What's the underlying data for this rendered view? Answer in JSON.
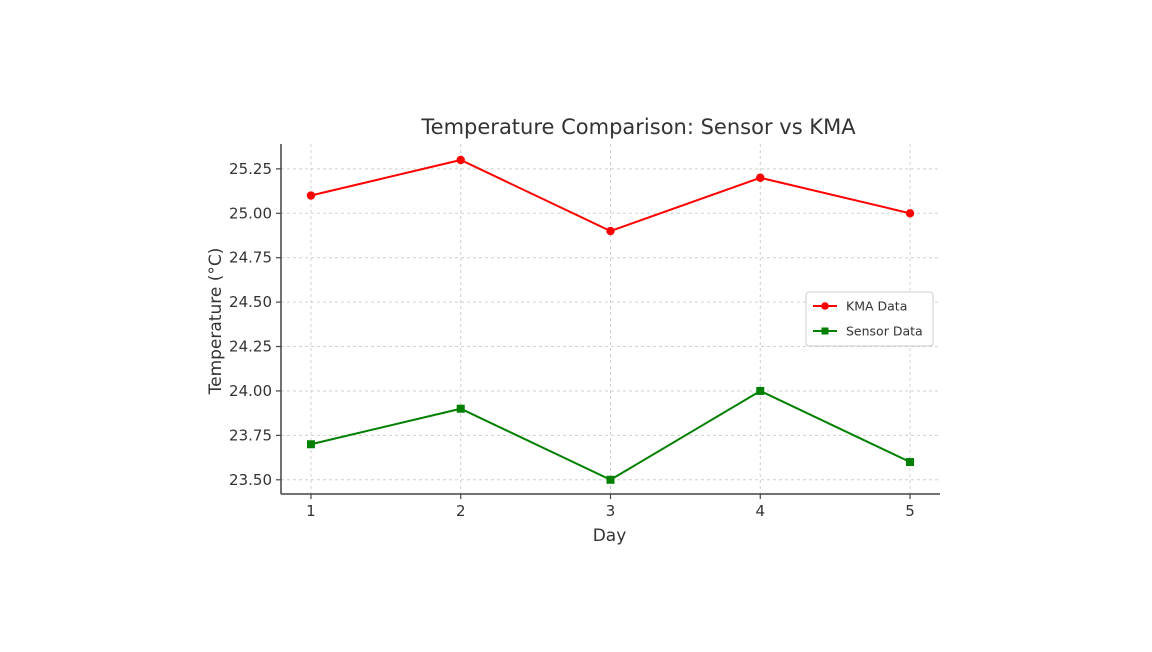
{
  "chart_data": {
    "type": "line",
    "title": "Temperature Comparison: Sensor vs KMA",
    "xlabel": "Day",
    "ylabel": "Temperature (°C)",
    "x": [
      1,
      2,
      3,
      4,
      5
    ],
    "x_tick_labels": [
      "1",
      "2",
      "3",
      "4",
      "5"
    ],
    "y_ticks": [
      23.5,
      23.75,
      24.0,
      24.25,
      24.5,
      24.75,
      25.0,
      25.25
    ],
    "y_tick_labels": [
      "23.50",
      "23.75",
      "24.00",
      "24.25",
      "24.50",
      "24.75",
      "25.00",
      "25.25"
    ],
    "xlim": [
      0.8,
      5.2
    ],
    "ylim": [
      23.42,
      25.39
    ],
    "grid": true,
    "legend_position": "center-right",
    "series": [
      {
        "name": "KMA Data",
        "values": [
          25.1,
          25.3,
          24.9,
          25.2,
          25.0
        ],
        "color": "#ff0000",
        "marker": "circle"
      },
      {
        "name": "Sensor Data",
        "values": [
          23.7,
          23.9,
          23.5,
          24.0,
          23.6
        ],
        "color": "#008000",
        "marker": "square"
      }
    ]
  }
}
